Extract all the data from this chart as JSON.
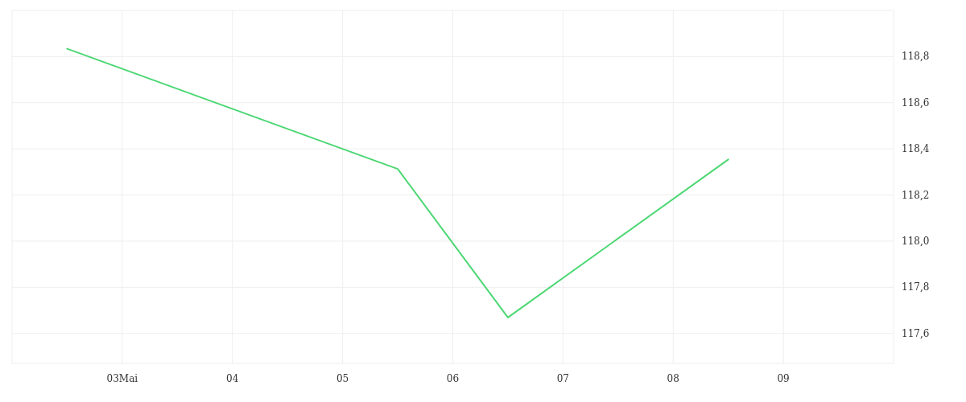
{
  "chart_data": {
    "type": "line",
    "x": [
      "--05-02T12:00",
      "--05-05T12:00",
      "--05-06T12:00",
      "--05-08T12:00"
    ],
    "series": [
      {
        "color": "#4cd773",
        "values": [
          118.834,
          118.313,
          117.669,
          118.354
        ]
      }
    ],
    "xlim": [
      "--05-02",
      "--05-10"
    ],
    "xticks": [
      {
        "value": "--05-03",
        "label": "03Mai"
      },
      {
        "value": "--05-04",
        "label": "04"
      },
      {
        "value": "--05-05",
        "label": "05"
      },
      {
        "value": "--05-06",
        "label": "06"
      },
      {
        "value": "--05-07",
        "label": "07"
      },
      {
        "value": "--05-08",
        "label": "08"
      },
      {
        "value": "--05-09",
        "label": "09"
      }
    ],
    "ylim": [
      117.47,
      119.0
    ],
    "yticks": [
      {
        "value": 117.6,
        "label": "117,6"
      },
      {
        "value": 117.8,
        "label": "117,8"
      },
      {
        "value": 118.0,
        "label": "118,0"
      },
      {
        "value": 118.2,
        "label": "118,2"
      },
      {
        "value": 118.4,
        "label": "118,4"
      },
      {
        "value": 118.6,
        "label": "118,6"
      },
      {
        "value": 118.8,
        "label": "118,8"
      }
    ],
    "grid": true,
    "marker": "none",
    "line_style": "solid"
  }
}
